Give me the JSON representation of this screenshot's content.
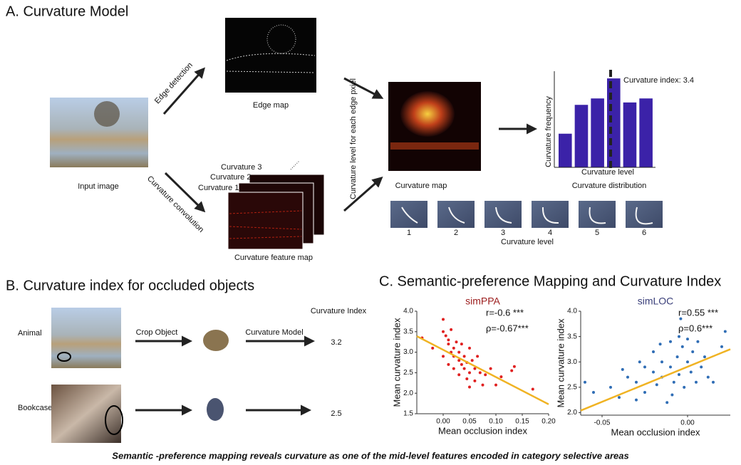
{
  "panel_a": {
    "title": "A. Curvature Model",
    "edge_detection": "Edge detection",
    "edge_map": "Edge map",
    "input_image": "Input image",
    "curvature_convolution": "Curvature convolution",
    "feature_labels": [
      "Curvature 3",
      "Curvature 2",
      "Curvature 1"
    ],
    "feature_map": "Curvature feature map",
    "vertical_label": "Curvature level for each edge pxiel",
    "curvature_map": "Curvature map",
    "filters": [
      1,
      2,
      3,
      4,
      5,
      6
    ],
    "filter_axis": "Curvature level"
  },
  "panel_b": {
    "title": "B. Curvature index for occluded objects",
    "column": "Curvature Index",
    "crop": "Crop Object",
    "model": "Curvature Model",
    "rows": [
      {
        "label": "Animal",
        "index": 3.2
      },
      {
        "label": "Bookcase",
        "index": 2.5
      }
    ]
  },
  "panel_c": {
    "title": "C. Semantic-preference Mapping and  Curvature Index"
  },
  "caption": "Semantic -preference mapping reveals curvature as one of the mid-level features encoded in category selective areas",
  "chart_data": [
    {
      "type": "bar",
      "title": "Curvature distribution",
      "xlabel": "Curvature level",
      "ylabel": "Curvature frequency",
      "annotation": "Curvature index: 3.4",
      "categories": [
        null,
        null,
        null,
        null,
        null,
        null
      ],
      "values": [
        42,
        78,
        86,
        111,
        81,
        86
      ],
      "ylim": [
        0,
        120
      ],
      "color": "#3b22a8"
    },
    {
      "type": "scatter",
      "title": "simPPA",
      "title_color": "#9b1b1b",
      "xlabel": "Mean occlusion index",
      "ylabel": "Mean curvature  index",
      "annotations": [
        "r=-0.6 ***",
        "ρ=-0.67***"
      ],
      "xlim": [
        -0.05,
        0.2
      ],
      "xticks": [
        {
          "value": 0,
          "label": "0.00"
        },
        0.05,
        {
          "value": 0.1,
          "label": "0.10"
        },
        0.15,
        {
          "value": 0.2,
          "label": "0.20"
        }
      ],
      "ylim": [
        1.5,
        4.0
      ],
      "yticks": [
        1.5,
        {
          "value": 2,
          "label": "2.0"
        },
        2.5,
        {
          "value": 3,
          "label": "3.0"
        },
        3.5,
        {
          "value": 4,
          "label": "4.0"
        }
      ],
      "color": "#e02020",
      "x": [
        -0.04,
        -0.02,
        0.0,
        0.0,
        0.005,
        0.01,
        0.01,
        0.015,
        0.02,
        0.02,
        0.025,
        0.03,
        0.03,
        0.035,
        0.04,
        0.04,
        0.045,
        0.05,
        0.05,
        0.055,
        0.06,
        0.06,
        0.065,
        0.07,
        0.075,
        0.08,
        0.09,
        0.1,
        0.11,
        0.13,
        0.135,
        0.17,
        0.0,
        0.01,
        0.02,
        0.03,
        0.045,
        0.05,
        0.015,
        0.035
      ],
      "values": [
        3.35,
        3.1,
        3.8,
        3.5,
        3.4,
        3.3,
        3.2,
        3.0,
        3.1,
        2.9,
        3.25,
        2.8,
        3.0,
        2.7,
        2.6,
        2.9,
        2.75,
        3.1,
        2.5,
        2.8,
        2.6,
        2.3,
        2.9,
        2.5,
        2.2,
        2.45,
        2.6,
        2.2,
        2.4,
        2.55,
        2.65,
        2.1,
        2.9,
        2.7,
        2.6,
        2.45,
        2.35,
        2.15,
        3.55,
        3.2
      ],
      "fit": {
        "x": [
          -0.05,
          0.2
        ],
        "values": [
          3.39,
          1.73
        ],
        "color": "#f0b323"
      }
    },
    {
      "type": "scatter",
      "title": "simLOC",
      "title_color": "#3a3f7a",
      "xlabel": "Mean occlusion index",
      "ylabel": "Mean curvature index",
      "annotations": [
        "r=0.55 ***",
        "ρ=0.6***"
      ],
      "xlim": [
        -0.0625,
        0.025
      ],
      "xticks": [
        -0.05,
        {
          "value": 0,
          "label": "0.00"
        }
      ],
      "ylim": [
        1.95,
        4.0
      ],
      "yticks": [
        {
          "value": 2,
          "label": "2.0"
        },
        2.5,
        {
          "value": 3,
          "label": "3.0"
        },
        3.5,
        {
          "value": 4,
          "label": "4.0"
        }
      ],
      "color": "#2f6db5",
      "x": [
        -0.06,
        -0.055,
        -0.045,
        -0.04,
        -0.035,
        -0.03,
        -0.03,
        -0.025,
        -0.025,
        -0.02,
        -0.02,
        -0.018,
        -0.015,
        -0.015,
        -0.012,
        -0.01,
        -0.01,
        -0.008,
        -0.006,
        -0.005,
        -0.005,
        -0.003,
        -0.002,
        0.0,
        0.0,
        0.002,
        0.003,
        0.005,
        0.006,
        0.008,
        0.01,
        0.012,
        0.015,
        -0.004,
        -0.009,
        0.02,
        0.022,
        -0.028,
        -0.038,
        -0.016
      ],
      "values": [
        2.6,
        2.4,
        2.5,
        2.3,
        2.7,
        2.25,
        2.6,
        2.9,
        2.4,
        2.8,
        3.2,
        2.55,
        2.7,
        3.0,
        2.2,
        3.4,
        2.9,
        2.6,
        3.1,
        3.5,
        2.75,
        3.3,
        2.5,
        3.0,
        3.45,
        2.8,
        3.2,
        2.6,
        3.4,
        2.9,
        3.1,
        2.7,
        2.6,
        3.85,
        2.35,
        3.3,
        3.6,
        3.0,
        2.85,
        3.35
      ],
      "fit": {
        "x": [
          -0.0625,
          0.025
        ],
        "values": [
          2.04,
          3.25
        ],
        "color": "#f0b323"
      }
    }
  ]
}
